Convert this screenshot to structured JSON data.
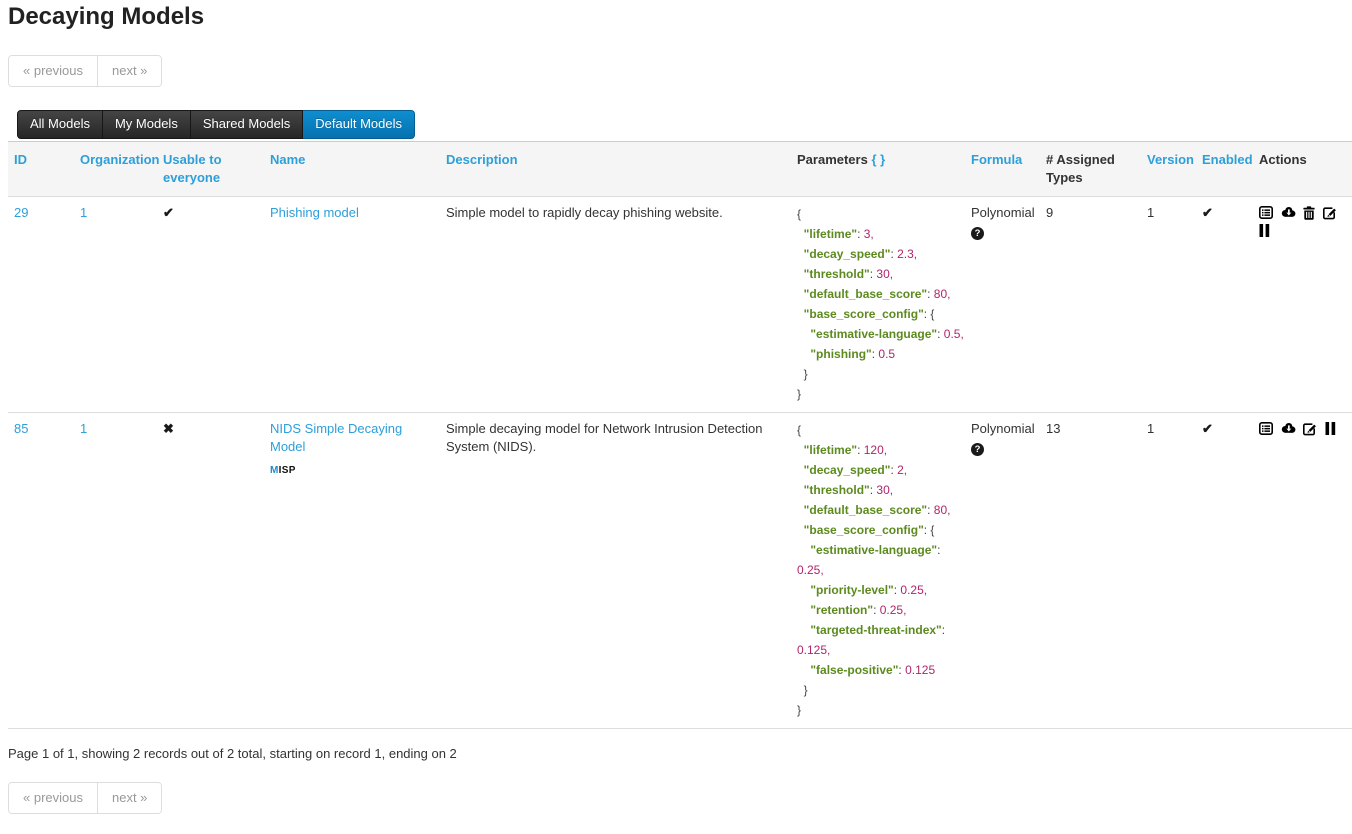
{
  "page": {
    "title": "Decaying Models",
    "summary": "Page 1 of 1, showing 2 records out of 2 total, starting on record 1, ending on 2"
  },
  "pagination": {
    "previous": "« previous",
    "next": "next »"
  },
  "tabs": {
    "all": "All Models",
    "my": "My Models",
    "shared": "Shared Models",
    "default": "Default Models",
    "active_tab": "Default Models"
  },
  "glyphs": {
    "check": "✔",
    "cross": "✖",
    "question": "?"
  },
  "colors": {
    "link": "#2d9fd9",
    "active_tab_top": "#0e8ed0",
    "active_tab_bottom": "#0671af",
    "json_key": "#5c8a1e",
    "json_value": "#b0246c"
  },
  "table": {
    "headers": {
      "id": "ID",
      "organization": "Organization",
      "usable": "Usable to everyone",
      "name": "Name",
      "description": "Description",
      "parameters": "Parameters",
      "parameters_braces": "{ }",
      "formula": "Formula",
      "assigned": "# Assigned Types",
      "version": "Version",
      "enabled": "Enabled",
      "actions": "Actions"
    },
    "rows": [
      {
        "id": "29",
        "organization": "1",
        "usable_to_everyone": true,
        "name": "Phishing model",
        "description": "Simple model to rapidly decay phishing website.",
        "parameters": {
          "lifetime": 3,
          "decay_speed": 2.3,
          "threshold": 30,
          "default_base_score": 80,
          "base_score_config": {
            "estimative-language": 0.5,
            "phishing": 0.5
          }
        },
        "formula": "Polynomial",
        "assigned_types": "9",
        "version": "1",
        "enabled": true,
        "actions": [
          "view-details-icon",
          "cloud-download-icon",
          "trash-icon",
          "edit-icon",
          "pause-icon"
        ]
      },
      {
        "id": "85",
        "organization": "1",
        "usable_to_everyone": false,
        "name": "NIDS Simple Decaying Model",
        "misp_badge": {
          "m": "M",
          "rest": "ISP"
        },
        "description": "Simple decaying model for Network Intrusion Detection System (NIDS).",
        "parameters": {
          "lifetime": 120,
          "decay_speed": 2,
          "threshold": 30,
          "default_base_score": 80,
          "base_score_config": {
            "estimative-language": 0.25,
            "priority-level": 0.25,
            "retention": 0.25,
            "targeted-threat-index": 0.125,
            "false-positive": 0.125
          }
        },
        "formula": "Polynomial",
        "assigned_types": "13",
        "version": "1",
        "enabled": true,
        "actions": [
          "view-details-icon",
          "cloud-download-icon",
          "edit-icon",
          "pause-icon"
        ]
      }
    ]
  }
}
